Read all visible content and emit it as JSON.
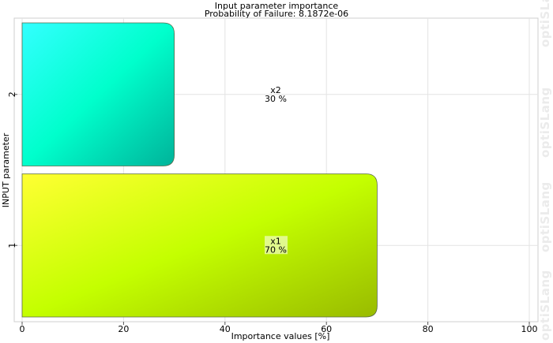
{
  "chart_data": {
    "type": "bar",
    "orientation": "horizontal",
    "title": "Input parameter importance",
    "subtitle": "Probability of Failure: 8.1872e-06",
    "xlabel": "Importance values [%]",
    "ylabel": "INPUT parameter",
    "xlim": [
      0,
      100
    ],
    "xticks": [
      0,
      20,
      40,
      60,
      80,
      100
    ],
    "grid": true,
    "categories": [
      "1",
      "2"
    ],
    "bars": [
      {
        "category": "1",
        "name": "x1",
        "value": 70,
        "label": "70 %",
        "colors": [
          "#ffff33",
          "#c4ff00",
          "#99bb00"
        ]
      },
      {
        "category": "2",
        "name": "x2",
        "value": 30,
        "label": "30 %",
        "colors": [
          "#33ffff",
          "#00ffcc",
          "#00b39a"
        ]
      }
    ]
  },
  "watermark": "optiSLang"
}
